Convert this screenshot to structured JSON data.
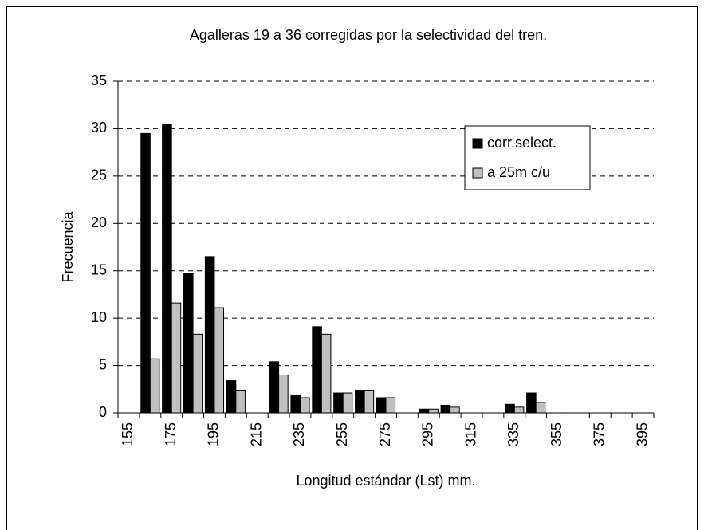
{
  "chart_data": {
    "type": "bar",
    "title": "Agalleras 19 a 36 corregidas por la selectividad del tren.",
    "x_label": "Longitud estándar (Lst) mm.",
    "y_label": "Frecuencia",
    "categories": [
      "155",
      null,
      "175",
      null,
      "195",
      null,
      "215",
      null,
      "235",
      null,
      "255",
      null,
      "275",
      null,
      "295",
      null,
      "315",
      null,
      "335",
      null,
      "355",
      null,
      "375",
      null,
      "395"
    ],
    "series": [
      {
        "name": "corr.select.",
        "color": "#000000",
        "values": [
          0,
          29.5,
          30.5,
          14.7,
          16.5,
          3.4,
          0,
          5.4,
          1.9,
          9.1,
          2.1,
          2.4,
          1.6,
          0,
          0.4,
          0.8,
          0,
          0,
          0.9,
          2.1,
          0,
          0,
          0,
          0,
          0
        ]
      },
      {
        "name": "a 25m c/u",
        "color": "#c0c0c0",
        "values": [
          0,
          5.7,
          11.6,
          8.3,
          11.1,
          2.4,
          0,
          4.0,
          1.6,
          8.3,
          2.1,
          2.4,
          1.6,
          0,
          0.4,
          0.6,
          0,
          0,
          0.6,
          1.1,
          0,
          0,
          0,
          0,
          0
        ]
      }
    ],
    "ylim": [
      0,
      35
    ],
    "yticks": [
      0,
      5,
      10,
      15,
      20,
      25,
      30,
      35
    ],
    "grid": true,
    "legend": "upper right"
  }
}
